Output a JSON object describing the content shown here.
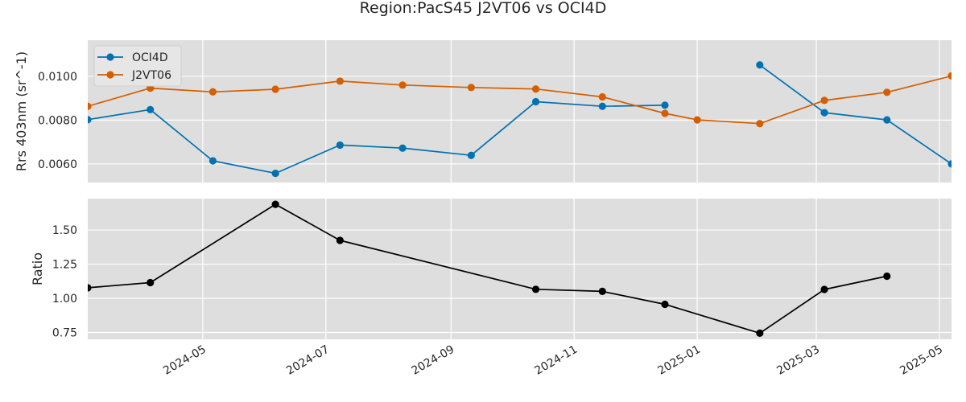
{
  "chart_data": {
    "title": "Region:PacS45 J2VT06 vs OCI4D",
    "panels": [
      {
        "type": "line",
        "ylabel": "Rrs 403nm (sr^-1)",
        "ylim": [
          0.00515,
          0.01165
        ],
        "yticks": [
          "0.0060",
          "0.0080",
          "0.0100"
        ],
        "ytick_values": [
          0.006,
          0.008,
          0.01
        ],
        "grid": true,
        "legend": "top-left",
        "series": [
          {
            "name": "OCI4D",
            "color": "#0072b2",
            "segments": [
              [
                {
                  "x": "2024-03-05",
                  "y": 0.00802
                },
                {
                  "x": "2024-04-05",
                  "y": 0.00848
                },
                {
                  "x": "2024-05-06",
                  "y": 0.00614
                },
                {
                  "x": "2024-06-06",
                  "y": 0.00557
                },
                {
                  "x": "2024-07-08",
                  "y": 0.00686
                },
                {
                  "x": "2024-08-08",
                  "y": 0.00672
                },
                {
                  "x": "2024-09-11",
                  "y": 0.00639
                },
                {
                  "x": "2024-10-13",
                  "y": 0.00884
                },
                {
                  "x": "2024-11-15",
                  "y": 0.00863
                },
                {
                  "x": "2024-12-16",
                  "y": 0.00868
                }
              ],
              [
                {
                  "x": "2025-02-01",
                  "y": 0.01052
                },
                {
                  "x": "2025-03-05",
                  "y": 0.00834
                },
                {
                  "x": "2025-04-05",
                  "y": 0.00801
                },
                {
                  "x": "2025-05-07",
                  "y": 0.006
                }
              ]
            ]
          },
          {
            "name": "J2VT06",
            "color": "#d55e00",
            "segments": [
              [
                {
                  "x": "2024-03-05",
                  "y": 0.00863
                },
                {
                  "x": "2024-04-05",
                  "y": 0.00946
                },
                {
                  "x": "2024-05-06",
                  "y": 0.00929
                },
                {
                  "x": "2024-06-06",
                  "y": 0.00941
                },
                {
                  "x": "2024-07-08",
                  "y": 0.00978
                },
                {
                  "x": "2024-08-08",
                  "y": 0.0096
                },
                {
                  "x": "2024-09-11",
                  "y": 0.00949
                },
                {
                  "x": "2024-10-13",
                  "y": 0.00942
                },
                {
                  "x": "2024-11-15",
                  "y": 0.00906
                },
                {
                  "x": "2024-12-16",
                  "y": 0.00831
                },
                {
                  "x": "2025-01-01",
                  "y": 0.00801
                },
                {
                  "x": "2025-02-01",
                  "y": 0.00784
                },
                {
                  "x": "2025-03-05",
                  "y": 0.0089
                },
                {
                  "x": "2025-04-05",
                  "y": 0.00927
                },
                {
                  "x": "2025-05-07",
                  "y": 0.01002
                }
              ]
            ]
          }
        ]
      },
      {
        "type": "line",
        "ylabel": "Ratio",
        "ylim": [
          0.7,
          1.73
        ],
        "yticks": [
          "0.75",
          "1.00",
          "1.25",
          "1.50"
        ],
        "ytick_values": [
          0.75,
          1.0,
          1.25,
          1.5
        ],
        "grid": true,
        "series": [
          {
            "color": "#000000",
            "segments": [
              [
                {
                  "x": "2024-03-05",
                  "y": 1.077
                },
                {
                  "x": "2024-04-05",
                  "y": 1.115
                },
                {
                  "x": "2024-06-06",
                  "y": 1.688
                },
                {
                  "x": "2024-07-08",
                  "y": 1.424
                },
                {
                  "x": "2024-10-13",
                  "y": 1.066
                },
                {
                  "x": "2024-11-15",
                  "y": 1.051
                },
                {
                  "x": "2024-12-16",
                  "y": 0.956
                },
                {
                  "x": "2025-02-01",
                  "y": 0.745
                },
                {
                  "x": "2025-03-05",
                  "y": 1.065
                },
                {
                  "x": "2025-04-05",
                  "y": 1.162
                }
              ]
            ]
          }
        ]
      }
    ],
    "x": {
      "type": "date",
      "xlim": [
        "2024-03-05",
        "2025-05-07"
      ],
      "ticks": [
        "2024-05",
        "2024-07",
        "2024-09",
        "2024-11",
        "2025-01",
        "2025-03",
        "2025-05"
      ],
      "tick_dates": [
        "2024-05-01",
        "2024-07-01",
        "2024-09-01",
        "2024-11-01",
        "2025-01-01",
        "2025-03-01",
        "2025-05-01"
      ]
    },
    "style": {
      "axes_bg": "#dedede",
      "grid_color": "#ffffff",
      "text_color": "#262626"
    }
  }
}
